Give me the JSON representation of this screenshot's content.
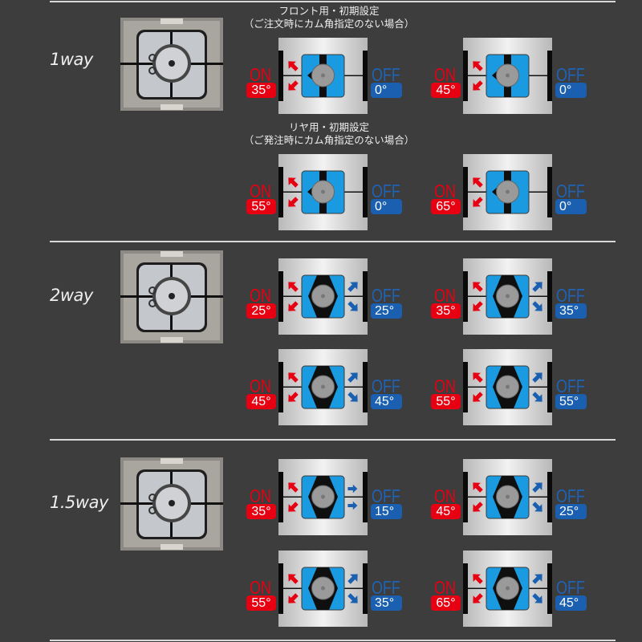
{
  "colors": {
    "on": "#e60012",
    "off": "#1a5fb0",
    "cam_block": "#1a9ae0",
    "background": "#3d3d3d"
  },
  "sections": [
    {
      "label": "1way",
      "rows": [
        {
          "subtitle": [
            "フロント用・初期設定",
            "（ご注文時にカム角指定のない場合）"
          ],
          "cards": [
            {
              "on_label": "ON",
              "on": "35°",
              "off_label": "OFF",
              "off": "0°",
              "off_arrows": "none"
            },
            {
              "on_label": "ON",
              "on": "45°",
              "off_label": "OFF",
              "off": "0°",
              "off_arrows": "none"
            }
          ]
        },
        {
          "subtitle": [
            "リヤ用・初期設定",
            "（ご発注時にカム角指定のない場合）"
          ],
          "cards": [
            {
              "on_label": "ON",
              "on": "55°",
              "off_label": "OFF",
              "off": "0°",
              "off_arrows": "none"
            },
            {
              "on_label": "ON",
              "on": "65°",
              "off_label": "OFF",
              "off": "0°",
              "off_arrows": "none"
            }
          ]
        }
      ]
    },
    {
      "label": "2way",
      "rows": [
        {
          "cards": [
            {
              "on_label": "ON",
              "on": "25°",
              "off_label": "OFF",
              "off": "25°",
              "off_arrows": "diagonal"
            },
            {
              "on_label": "ON",
              "on": "35°",
              "off_label": "OFF",
              "off": "35°",
              "off_arrows": "diagonal"
            }
          ]
        },
        {
          "cards": [
            {
              "on_label": "ON",
              "on": "45°",
              "off_label": "OFF",
              "off": "45°",
              "off_arrows": "diagonal"
            },
            {
              "on_label": "ON",
              "on": "55°",
              "off_label": "OFF",
              "off": "55°",
              "off_arrows": "diagonal"
            }
          ]
        }
      ]
    },
    {
      "label": "1.5way",
      "rows": [
        {
          "cards": [
            {
              "on_label": "ON",
              "on": "35°",
              "off_label": "OFF",
              "off": "15°",
              "off_arrows": "horizontal"
            },
            {
              "on_label": "ON",
              "on": "45°",
              "off_label": "OFF",
              "off": "25°",
              "off_arrows": "diagonal"
            }
          ]
        },
        {
          "cards": [
            {
              "on_label": "ON",
              "on": "55°",
              "off_label": "OFF",
              "off": "35°",
              "off_arrows": "diagonal"
            },
            {
              "on_label": "ON",
              "on": "65°",
              "off_label": "OFF",
              "off": "45°",
              "off_arrows": "diagonal"
            }
          ]
        }
      ]
    }
  ]
}
